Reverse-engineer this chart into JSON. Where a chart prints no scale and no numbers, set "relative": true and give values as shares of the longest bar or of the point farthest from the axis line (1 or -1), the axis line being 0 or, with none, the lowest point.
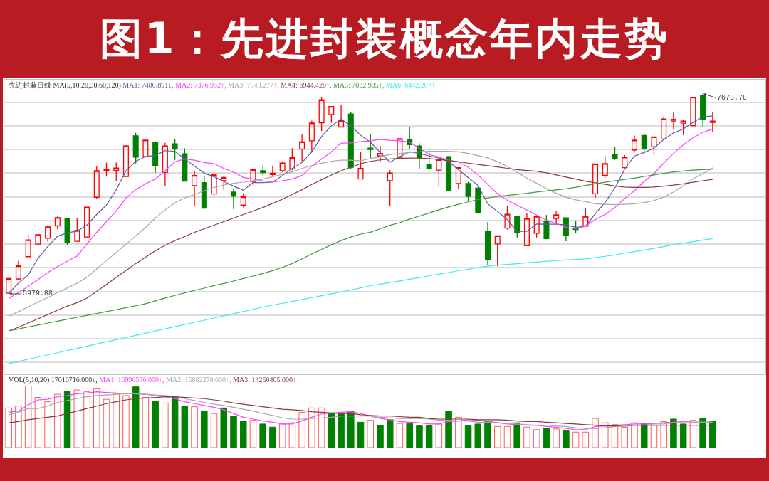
{
  "chart_data": [
    {
      "type": "candlestick",
      "title": "图1：先进封装概念年内走势",
      "subtitle": "先进封装日线 MA(5,10,20,30,60,120)",
      "grid": "y",
      "categories": [
        null,
        null,
        null,
        null,
        null,
        null,
        null,
        null,
        null,
        null,
        null,
        null,
        null,
        null,
        null,
        null,
        null,
        null,
        null,
        null,
        null,
        null,
        null,
        null,
        null,
        null,
        null,
        null,
        null,
        null,
        null,
        null,
        null,
        null,
        null,
        null,
        null,
        null,
        null,
        null,
        null,
        null,
        null,
        null,
        null,
        null,
        null,
        null,
        null,
        null,
        null,
        null,
        null,
        null,
        null,
        null,
        null,
        null,
        null,
        null,
        null,
        null,
        null,
        null,
        null,
        null,
        null,
        null,
        null,
        null,
        null,
        null,
        null
      ],
      "ylim": [
        5300,
        7790
      ],
      "yticks": [
        {
          "value": 5400,
          "label": null
        },
        {
          "value": 5600,
          "label": null
        },
        {
          "value": 5800,
          "label": null
        },
        {
          "value": 6000,
          "label": null
        },
        {
          "value": 6200,
          "label": null
        },
        {
          "value": 6400,
          "label": null
        },
        {
          "value": 6600,
          "label": null
        },
        {
          "value": 6800,
          "label": null
        },
        {
          "value": 7000,
          "label": null
        },
        {
          "value": 7200,
          "label": null
        },
        {
          "value": 7400,
          "label": null
        },
        {
          "value": 7600,
          "label": null
        }
      ],
      "ohlc": [
        [
          5985,
          6115,
          5979.88,
          6110
        ],
        [
          6106,
          6260,
          6096,
          6216
        ],
        [
          6294,
          6480,
          6280,
          6436
        ],
        [
          6400,
          6486,
          6390,
          6480
        ],
        [
          6450,
          6560,
          6420,
          6546
        ],
        [
          6554,
          6636,
          6526,
          6624
        ],
        [
          6614,
          6620,
          6390,
          6410
        ],
        [
          6424,
          6620,
          6420,
          6516
        ],
        [
          6460,
          6712,
          6450,
          6712
        ],
        [
          6796,
          7056,
          6780,
          7020
        ],
        [
          7020,
          7090,
          6970,
          7030
        ],
        [
          7024,
          7090,
          6934,
          7044
        ],
        [
          6972,
          7236,
          6968,
          7230
        ],
        [
          7316,
          7340,
          7084,
          7136
        ],
        [
          7140,
          7284,
          7136,
          7280
        ],
        [
          7260,
          7270,
          7004,
          7060
        ],
        [
          7006,
          7256,
          6890,
          7230
        ],
        [
          7248,
          7288,
          7112,
          7204
        ],
        [
          7164,
          7210,
          6928,
          6932
        ],
        [
          6894,
          7020,
          6720,
          6980
        ],
        [
          6920,
          6976,
          6704,
          6704
        ],
        [
          6824,
          6988,
          6800,
          6988
        ],
        [
          6936,
          6976,
          6860,
          6964
        ],
        [
          6840,
          6864,
          6696,
          6804
        ],
        [
          6730,
          6830,
          6710,
          6800
        ],
        [
          6930,
          7044,
          6890,
          7030
        ],
        [
          7020,
          7064,
          6984,
          7004
        ],
        [
          6988,
          7064,
          6970,
          7000
        ],
        [
          7020,
          7100,
          7010,
          7086
        ],
        [
          7036,
          7210,
          7024,
          7130
        ],
        [
          7204,
          7330,
          7100,
          7264
        ],
        [
          7274,
          7444,
          7180,
          7424
        ],
        [
          7426,
          7644,
          7356,
          7620
        ],
        [
          7496,
          7564,
          7424,
          7564
        ],
        [
          7390,
          7580,
          7386,
          7444
        ],
        [
          7500,
          7520,
          7036,
          7050
        ],
        [
          6950,
          7180,
          6946,
          7040
        ],
        [
          7211,
          7329,
          7129,
          7200
        ],
        [
          7145,
          7229,
          7096,
          7167
        ],
        [
          6936,
          7025,
          6726,
          7001
        ],
        [
          7129,
          7296,
          7125,
          7291
        ],
        [
          7285,
          7389,
          7207,
          7240
        ],
        [
          7229,
          7251,
          7034,
          7129
        ],
        [
          7074,
          7207,
          7018,
          7038
        ],
        [
          7025,
          7114,
          6885,
          7114
        ],
        [
          7140,
          7145,
          6856,
          6856
        ],
        [
          6912,
          7052,
          6870,
          7047
        ],
        [
          6912,
          6927,
          6768,
          6803
        ],
        [
          6874,
          6879,
          6659,
          6668
        ],
        [
          6510,
          6586,
          6220,
          6271
        ],
        [
          6402,
          6475,
          6213,
          6470
        ],
        [
          6535,
          6719,
          6524,
          6652
        ],
        [
          6635,
          6639,
          6457,
          6497
        ],
        [
          6386,
          6666,
          6382,
          6617
        ],
        [
          6492,
          6635,
          6457,
          6635
        ],
        [
          6595,
          6646,
          6441,
          6446
        ],
        [
          6617,
          6679,
          6568,
          6648
        ],
        [
          6623,
          6623,
          6424,
          6470
        ],
        [
          6534,
          6595,
          6497,
          6523
        ],
        [
          6552,
          6708,
          6548,
          6635
        ],
        [
          6825,
          7078,
          6790,
          7078
        ],
        [
          6981,
          7145,
          6963,
          7081
        ],
        [
          7156,
          7223,
          7112,
          7127
        ],
        [
          7047,
          7152,
          7041,
          7136
        ],
        [
          7196,
          7318,
          7174,
          7280
        ],
        [
          7318,
          7329,
          7185,
          7207
        ],
        [
          7223,
          7307,
          7152,
          7307
        ],
        [
          7289,
          7478,
          7285,
          7458
        ],
        [
          7440,
          7518,
          7367,
          7456
        ],
        [
          7422,
          7451,
          7322,
          7440
        ],
        [
          7402,
          7642,
          7396,
          7642
        ],
        [
          7657,
          7673.78,
          7396,
          7456
        ],
        [
          7429,
          7513,
          7345,
          7440
        ]
      ],
      "colors": [
        "#ff0000",
        "#ff0000",
        "#ff0000",
        "#ff0000",
        "#ff0000",
        "#ff0000",
        "#008000",
        "#ff0000",
        "#ff0000",
        "#ff0000",
        "#ff0000",
        "#ff0000",
        "#ff0000",
        "#008000",
        "#ff0000",
        "#008000",
        "#ff0000",
        "#008000",
        "#008000",
        "#ff0000",
        "#008000",
        "#ff0000",
        "#ff0000",
        "#008000",
        "#ff0000",
        "#ff0000",
        "#008000",
        "#ff0000",
        "#ff0000",
        "#ff0000",
        "#ff0000",
        "#ff0000",
        "#ff0000",
        "#ff0000",
        "#ff0000",
        "#008000",
        "#ff0000",
        "#008000",
        "#ff0000",
        "#ff0000",
        "#ff0000",
        "#008000",
        "#008000",
        "#008000",
        "#ff0000",
        "#008000",
        "#ff0000",
        "#008000",
        "#008000",
        "#008000",
        "#ff0000",
        "#ff0000",
        "#008000",
        "#ff0000",
        "#ff0000",
        "#008000",
        "#ff0000",
        "#008000",
        "#008000",
        "#ff0000",
        "#ff0000",
        "#ff0000",
        "#008000",
        "#ff0000",
        "#ff0000",
        "#008000",
        "#ff0000",
        "#ff0000",
        "#ff0000",
        "#ff0000",
        "#ff0000",
        "#008000",
        "#ff0000"
      ],
      "annotations": [
        "5979.88",
        "7673.78"
      ],
      "series": [
        {
          "type": "line",
          "name": "MA1: 7480.891↓,",
          "color": "#5a5aa5",
          "values": [
            5984,
            6070,
            6140,
            6280,
            6380,
            6466,
            6496,
            6510,
            6560,
            6650,
            6730,
            6860,
            7020,
            7100,
            7140,
            7150,
            7190,
            7184,
            7120,
            7060,
            7000,
            6970,
            6930,
            6890,
            6856,
            6920,
            6920,
            6924,
            6980,
            7040,
            7090,
            7180,
            7310,
            7400,
            7456,
            7400,
            7320,
            7262,
            7174,
            7092,
            7140,
            7180,
            7167,
            7145,
            7129,
            7096,
            7029,
            6963,
            6896,
            6741,
            6675,
            6608,
            6508,
            6508,
            6570,
            6568,
            6568,
            6564,
            6541,
            6552,
            6657,
            6752,
            6874,
            7034,
            7145,
            7174,
            7212,
            7285,
            7340,
            7373,
            7429,
            7478,
            7482
          ]
        },
        {
          "type": "line",
          "name": "MA2: 7376.952↑,",
          "color": "#ff40ff",
          "values": [
            5940,
            5990,
            6044,
            6100,
            6160,
            6210,
            6256,
            6300,
            6400,
            6500,
            6590,
            6680,
            6790,
            6860,
            6910,
            6950,
            7020,
            7096,
            7120,
            7110,
            7090,
            7080,
            7040,
            7010,
            6964,
            6950,
            6936,
            6924,
            6936,
            6950,
            6980,
            7060,
            7120,
            7180,
            7254,
            7256,
            7266,
            7274,
            7285,
            7278,
            7274,
            7263,
            7211,
            7158,
            7136,
            7108,
            7095,
            7050,
            6985,
            6905,
            6825,
            6770,
            6728,
            6688,
            6646,
            6602,
            6575,
            6541,
            6530,
            6552,
            6608,
            6652,
            6708,
            6785,
            6852,
            6930,
            6996,
            7085,
            7167,
            7240,
            7300,
            7345,
            7373
          ]
        },
        {
          "type": "line",
          "name": "MA3: 7048.277↑,",
          "color": "#a8a8a8",
          "values": [
            5790,
            5830,
            5870,
            5910,
            5950,
            5990,
            6030,
            6070,
            6120,
            6190,
            6260,
            6330,
            6400,
            6470,
            6540,
            6620,
            6690,
            6750,
            6790,
            6820,
            6850,
            6880,
            6900,
            6914,
            6924,
            6936,
            6950,
            6970,
            6990,
            7010,
            7040,
            7064,
            7084,
            7100,
            7110,
            7110,
            7104,
            7123,
            7140,
            7158,
            7167,
            7174,
            7180,
            7185,
            7185,
            7185,
            7180,
            7167,
            7149,
            7129,
            7096,
            7056,
            7007,
            6958,
            6914,
            6870,
            6830,
            6797,
            6774,
            6759,
            6741,
            6737,
            6734,
            6737,
            6741,
            6752,
            6768,
            6797,
            6841,
            6892,
            6952,
            6996,
            7045
          ]
        },
        {
          "type": "line",
          "name": "MA4: 6944.420↑,",
          "color": "#8b3a3a",
          "values": [
            5667,
            5697,
            5733,
            5769,
            5805,
            5841,
            5877,
            5905,
            5944,
            6000,
            6060,
            6120,
            6176,
            6236,
            6290,
            6344,
            6390,
            6430,
            6464,
            6500,
            6530,
            6560,
            6590,
            6620,
            6650,
            6680,
            6710,
            6744,
            6780,
            6820,
            6860,
            6904,
            6944,
            6984,
            7020,
            7050,
            7080,
            7100,
            7112,
            7120,
            7125,
            7128,
            7127,
            7123,
            7116,
            7107,
            7096,
            7085,
            7074,
            7063,
            7052,
            7041,
            7030,
            7023,
            7016,
            7003,
            6985,
            6967,
            6950,
            6932,
            6919,
            6905,
            6892,
            6883,
            6879,
            6879,
            6883,
            6890,
            6899,
            6910,
            6923,
            6936,
            6947
          ]
        },
        {
          "type": "line",
          "name": "MA5: 7032.905↑,",
          "color": "#3c9a3c",
          "values": [
            5667,
            5683,
            5700,
            5716,
            5733,
            5749,
            5765,
            5781,
            5798,
            5814,
            5830,
            5846,
            5863,
            5879,
            5896,
            5920,
            5944,
            5966,
            5988,
            6008,
            6028,
            6050,
            6068,
            6088,
            6110,
            6130,
            6152,
            6176,
            6204,
            6236,
            6276,
            6316,
            6356,
            6394,
            6430,
            6460,
            6485,
            6501,
            6530,
            6559,
            6581,
            6612,
            6637,
            6663,
            6690,
            6714,
            6737,
            6757,
            6777,
            6790,
            6803,
            6812,
            6821,
            6830,
            6841,
            6850,
            6859,
            6868,
            6881,
            6896,
            6910,
            6923,
            6936,
            6947,
            6958,
            6972,
            6985,
            6998,
            7010,
            7018,
            7025,
            7030,
            7034
          ]
        },
        {
          "type": "line",
          "name": "MA6: 6442.207↑",
          "color": "#40e8f0",
          "values": [
            5391,
            5409,
            5428,
            5446,
            5464,
            5482,
            5501,
            5519,
            5537,
            5556,
            5574,
            5592,
            5611,
            5629,
            5647,
            5666,
            5684,
            5702,
            5720,
            5739,
            5757,
            5775,
            5794,
            5812,
            5830,
            5849,
            5867,
            5885,
            5900,
            5916,
            5932,
            5948,
            5964,
            5980,
            5996,
            6012,
            6030,
            6049,
            6062,
            6075,
            6089,
            6104,
            6117,
            6133,
            6146,
            6160,
            6175,
            6188,
            6202,
            6213,
            6222,
            6228,
            6235,
            6242,
            6248,
            6255,
            6262,
            6266,
            6271,
            6275,
            6286,
            6297,
            6308,
            6324,
            6337,
            6350,
            6364,
            6379,
            6395,
            6408,
            6421,
            6435,
            6446
          ]
        }
      ]
    },
    {
      "type": "bar",
      "relative": true,
      "subtitle": "VOL(5,10,20) 17016716.000↓,",
      "categories": [
        null,
        null,
        null,
        null,
        null,
        null,
        null,
        null,
        null,
        null,
        null,
        null,
        null,
        null,
        null,
        null,
        null,
        null,
        null,
        null,
        null,
        null,
        null,
        null,
        null,
        null,
        null,
        null,
        null,
        null,
        null,
        null,
        null,
        null,
        null,
        null,
        null,
        null,
        null,
        null,
        null,
        null,
        null,
        null,
        null,
        null,
        null,
        null,
        null,
        null,
        null,
        null,
        null,
        null,
        null,
        null,
        null,
        null,
        null,
        null,
        null,
        null,
        null,
        null,
        null,
        null,
        null,
        null,
        null,
        null,
        null,
        null,
        null
      ],
      "series": [
        {
          "type": "bar",
          "colors": [
            "#ff5a5a",
            "#ff5a5a",
            "#ff5a5a",
            "#ff5a5a",
            "#ff5a5a",
            "#ff5a5a",
            "#008000",
            "#ff5a5a",
            "#ff5a5a",
            "#ff5a5a",
            "#ff5a5a",
            "#ff5a5a",
            "#ff5a5a",
            "#008000",
            "#ff5a5a",
            "#008000",
            "#ff5a5a",
            "#008000",
            "#008000",
            "#ff5a5a",
            "#008000",
            "#ff5a5a",
            "#008000",
            "#008000",
            "#008000",
            "#ff5a5a",
            "#008000",
            "#008000",
            "#ff5a5a",
            "#ff5a5a",
            "#ff5a5a",
            "#ff5a5a",
            "#ff5a5a",
            "#008000",
            "#008000",
            "#008000",
            "#008000",
            "#ff5a5a",
            "#008000",
            "#008000",
            "#ff5a5a",
            "#008000",
            "#008000",
            "#008000",
            "#ff5a5a",
            "#008000",
            "#ff5a5a",
            "#008000",
            "#008000",
            "#008000",
            "#ff5a5a",
            "#ff5a5a",
            "#008000",
            "#ff5a5a",
            "#ff5a5a",
            "#008000",
            "#ff5a5a",
            "#008000",
            "#ff5a5a",
            "#ff5a5a",
            "#ff5a5a",
            "#ff5a5a",
            "#ff5a5a",
            "#ff5a5a",
            "#ff5a5a",
            "#008000",
            "#ff5a5a",
            "#ff5a5a",
            "#008000",
            "#008000",
            "#ff5a5a",
            "#008000",
            "#008000"
          ],
          "values": [
            0.64,
            0.67,
            1,
            0.81,
            0.74,
            0.86,
            0.91,
            0.93,
            0.9,
            0.95,
            0.78,
            0.87,
            0.84,
            0.98,
            0.81,
            0.75,
            0.72,
            0.81,
            0.67,
            0.66,
            0.59,
            0.55,
            0.64,
            0.51,
            0.43,
            0.44,
            0.38,
            0.33,
            0.38,
            0.4,
            0.57,
            0.64,
            0.64,
            0.55,
            0.55,
            0.59,
            0.41,
            0.44,
            0.36,
            0.45,
            0.39,
            0.39,
            0.35,
            0.35,
            0.38,
            0.59,
            0.49,
            0.35,
            0.38,
            0.42,
            0.34,
            0.34,
            0.4,
            0.33,
            0.29,
            0.31,
            0.3,
            0.27,
            0.25,
            0.25,
            0.47,
            0.4,
            0.37,
            0.33,
            0.4,
            0.39,
            0.36,
            0.42,
            0.46,
            0.38,
            0.44,
            0.47,
            0.43
          ]
        },
        {
          "type": "line",
          "name": "MA1: 16996576.000↑,",
          "color": "#ff40ff",
          "values": [
            0.57,
            0.59,
            0.69,
            0.77,
            0.78,
            0.82,
            0.84,
            0.87,
            0.88,
            0.9,
            0.89,
            0.88,
            0.87,
            0.87,
            0.86,
            0.84,
            0.82,
            0.79,
            0.74,
            0.71,
            0.68,
            0.65,
            0.61,
            0.55,
            0.49,
            0.46,
            0.43,
            0.41,
            0.38,
            0.38,
            0.43,
            0.49,
            0.54,
            0.56,
            0.57,
            0.58,
            0.55,
            0.51,
            0.47,
            0.45,
            0.42,
            0.41,
            0.4,
            0.38,
            0.38,
            0.42,
            0.43,
            0.45,
            0.44,
            0.43,
            0.4,
            0.38,
            0.37,
            0.36,
            0.36,
            0.34,
            0.33,
            0.31,
            0.29,
            0.29,
            0.34,
            0.35,
            0.36,
            0.37,
            0.38,
            0.38,
            0.39,
            0.4,
            0.41,
            0.42,
            0.43,
            0.43,
            0.43
          ]
        },
        {
          "type": "line",
          "name": "MA2: 15882270.000↑,",
          "color": "#a8a8a8",
          "values": [
            0.53,
            0.57,
            0.63,
            0.63,
            0.67,
            0.73,
            0.76,
            0.79,
            0.82,
            0.84,
            0.85,
            0.86,
            0.87,
            0.87,
            0.86,
            0.85,
            0.84,
            0.82,
            0.79,
            0.76,
            0.73,
            0.7,
            0.68,
            0.65,
            0.62,
            0.59,
            0.55,
            0.52,
            0.48,
            0.46,
            0.46,
            0.47,
            0.48,
            0.49,
            0.51,
            0.51,
            0.51,
            0.51,
            0.49,
            0.48,
            0.47,
            0.47,
            0.47,
            0.46,
            0.44,
            0.44,
            0.43,
            0.43,
            0.41,
            0.41,
            0.4,
            0.39,
            0.38,
            0.37,
            0.36,
            0.36,
            0.35,
            0.34,
            0.32,
            0.31,
            0.31,
            0.32,
            0.34,
            0.34,
            0.36,
            0.36,
            0.38,
            0.38,
            0.4,
            0.4,
            0.41,
            0.41,
            0.41
          ]
        },
        {
          "type": "line",
          "name": "MA3: 14250405.000↑",
          "color": "#8b3a3a",
          "values": [
            0.4,
            0.42,
            0.45,
            0.47,
            0.49,
            0.51,
            0.55,
            0.59,
            0.63,
            0.67,
            0.71,
            0.74,
            0.77,
            0.79,
            0.8,
            0.81,
            0.82,
            0.82,
            0.81,
            0.8,
            0.79,
            0.77,
            0.75,
            0.72,
            0.7,
            0.68,
            0.66,
            0.64,
            0.62,
            0.61,
            0.6,
            0.58,
            0.57,
            0.56,
            0.55,
            0.55,
            0.53,
            0.52,
            0.51,
            0.51,
            0.5,
            0.49,
            0.49,
            0.47,
            0.46,
            0.46,
            0.46,
            0.46,
            0.45,
            0.45,
            0.45,
            0.44,
            0.43,
            0.42,
            0.42,
            0.41,
            0.4,
            0.39,
            0.38,
            0.37,
            0.36,
            0.35,
            0.35,
            0.36,
            0.36,
            0.36,
            0.36,
            0.36,
            0.36,
            0.36,
            0.36,
            0.36,
            0.36
          ]
        }
      ]
    }
  ]
}
